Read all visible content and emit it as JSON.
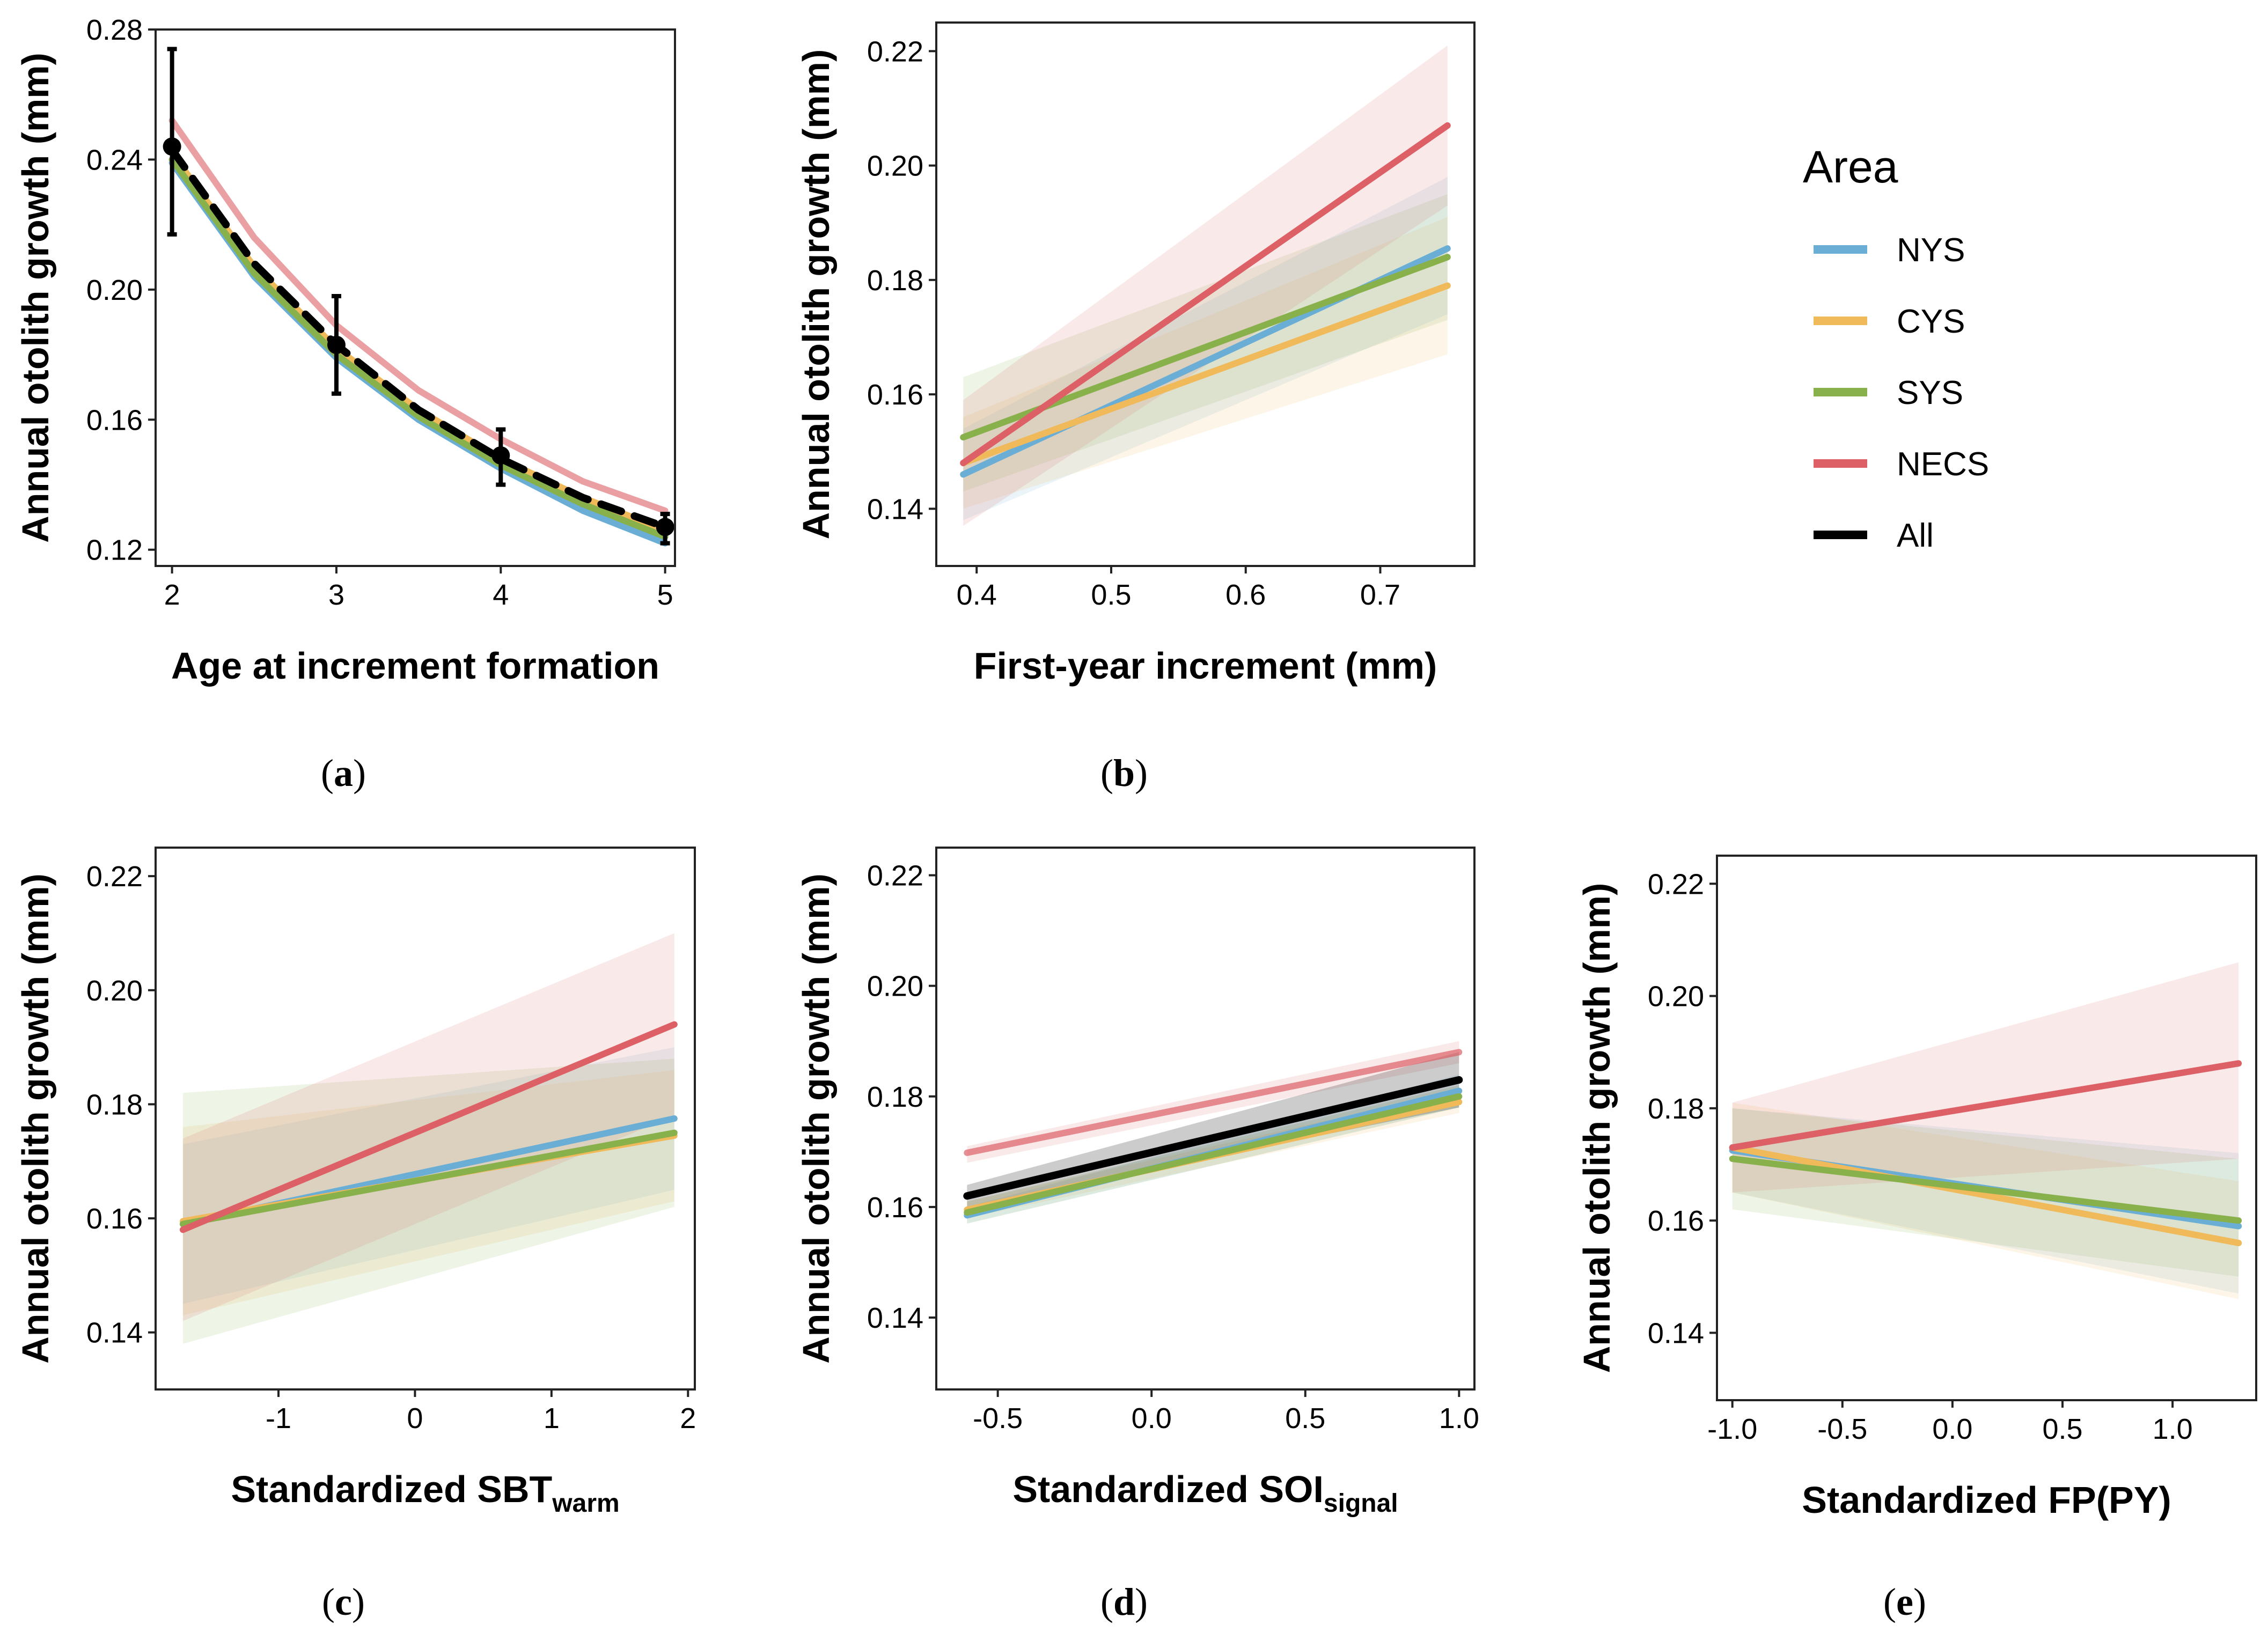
{
  "colors": {
    "NYS": "#6aaed6",
    "CYS": "#f0b95a",
    "SYS": "#88b04b",
    "NECS": "#dc6066",
    "All": "#000000"
  },
  "legend": {
    "title": "Area",
    "entries": [
      {
        "key": "NYS",
        "label": "NYS"
      },
      {
        "key": "CYS",
        "label": "CYS"
      },
      {
        "key": "SYS",
        "label": "SYS"
      },
      {
        "key": "NECS",
        "label": "NECS"
      },
      {
        "key": "All",
        "label": "All"
      }
    ]
  },
  "chart_data": [
    {
      "id": "a",
      "caption": "(a)",
      "type": "line",
      "xlabel": "Age at increment formation",
      "ylabel": "Annual otolith growth (mm)",
      "xlim": [
        1.9,
        5.06
      ],
      "ylim": [
        0.115,
        0.28
      ],
      "xticks": [
        2,
        3,
        4,
        5
      ],
      "xtick_labels": [
        "2",
        "3",
        "4",
        "5"
      ],
      "yticks": [
        0.12,
        0.16,
        0.2,
        0.24,
        0.28
      ],
      "ytick_labels": [
        "0.12",
        "0.16",
        "0.20",
        "0.24",
        "0.28"
      ],
      "series": [
        {
          "name": "NYS",
          "x": [
            2,
            2.5,
            3,
            3.5,
            4,
            4.5,
            5
          ],
          "y": [
            0.239,
            0.204,
            0.179,
            0.16,
            0.145,
            0.132,
            0.122
          ]
        },
        {
          "name": "CYS",
          "x": [
            2,
            2.5,
            3,
            3.5,
            4,
            4.5,
            5
          ],
          "y": [
            0.242,
            0.207,
            0.182,
            0.163,
            0.148,
            0.136,
            0.126
          ]
        },
        {
          "name": "SYS",
          "x": [
            2,
            2.5,
            3,
            3.5,
            4,
            4.5,
            5
          ],
          "y": [
            0.24,
            0.205,
            0.18,
            0.161,
            0.146,
            0.134,
            0.124
          ]
        },
        {
          "name": "NECS",
          "x": [
            2,
            2.5,
            3,
            3.5,
            4,
            4.5,
            5
          ],
          "y": [
            0.252,
            0.216,
            0.189,
            0.169,
            0.154,
            0.141,
            0.132
          ]
        },
        {
          "name": "All",
          "dashed": true,
          "x": [
            2,
            2.5,
            3,
            3.5,
            4,
            4.5,
            5
          ],
          "y": [
            0.243,
            0.208,
            0.183,
            0.163,
            0.148,
            0.136,
            0.127
          ]
        }
      ],
      "points": {
        "x": [
          2,
          3,
          4,
          5
        ],
        "y": [
          0.244,
          0.183,
          0.149,
          0.127
        ],
        "lower": [
          0.217,
          0.168,
          0.14,
          0.122
        ],
        "upper": [
          0.274,
          0.198,
          0.157,
          0.131
        ]
      }
    },
    {
      "id": "b",
      "caption": "(b)",
      "type": "line",
      "xlabel": "First-year increment (mm)",
      "ylabel": "Annual otolith growth (mm)",
      "xlim": [
        0.37,
        0.77
      ],
      "ylim": [
        0.13,
        0.225
      ],
      "xticks": [
        0.4,
        0.5,
        0.6,
        0.7
      ],
      "xtick_labels": [
        "0.4",
        "0.5",
        "0.6",
        "0.7"
      ],
      "yticks": [
        0.14,
        0.16,
        0.18,
        0.2,
        0.22
      ],
      "ytick_labels": [
        "0.14",
        "0.16",
        "0.18",
        "0.20",
        "0.22"
      ],
      "series": [
        {
          "name": "NYS",
          "x": [
            0.39,
            0.75
          ],
          "y": [
            0.146,
            0.1855
          ],
          "lower": [
            0.138,
            0.174
          ],
          "upper": [
            0.154,
            0.198
          ]
        },
        {
          "name": "CYS",
          "x": [
            0.39,
            0.75
          ],
          "y": [
            0.148,
            0.179
          ],
          "lower": [
            0.14,
            0.167
          ],
          "upper": [
            0.156,
            0.191
          ]
        },
        {
          "name": "SYS",
          "x": [
            0.39,
            0.75
          ],
          "y": [
            0.1525,
            0.184
          ],
          "lower": [
            0.143,
            0.173
          ],
          "upper": [
            0.163,
            0.195
          ]
        },
        {
          "name": "NECS",
          "x": [
            0.39,
            0.75
          ],
          "y": [
            0.148,
            0.207
          ],
          "lower": [
            0.137,
            0.193
          ],
          "upper": [
            0.159,
            0.221
          ]
        }
      ]
    },
    {
      "id": "c",
      "caption": "(c)",
      "type": "line",
      "xlabel": "Standardized SBT",
      "xlabel_sub": "warm",
      "ylabel": "Annual otolith growth (mm)",
      "xlim": [
        -1.9,
        2.05
      ],
      "ylim": [
        0.13,
        0.225
      ],
      "xticks": [
        -1,
        0,
        1,
        2
      ],
      "xtick_labels": [
        "-1",
        "0",
        "1",
        "2"
      ],
      "yticks": [
        0.14,
        0.16,
        0.18,
        0.2,
        0.22
      ],
      "ytick_labels": [
        "0.14",
        "0.16",
        "0.18",
        "0.20",
        "0.22"
      ],
      "series": [
        {
          "name": "NYS",
          "x": [
            -1.7,
            1.9
          ],
          "y": [
            0.159,
            0.1775
          ],
          "lower": [
            0.145,
            0.165
          ],
          "upper": [
            0.173,
            0.19
          ]
        },
        {
          "name": "CYS",
          "x": [
            -1.7,
            1.9
          ],
          "y": [
            0.1595,
            0.1745
          ],
          "lower": [
            0.143,
            0.163
          ],
          "upper": [
            0.176,
            0.186
          ]
        },
        {
          "name": "SYS",
          "x": [
            -1.7,
            1.9
          ],
          "y": [
            0.159,
            0.175
          ],
          "lower": [
            0.138,
            0.162
          ],
          "upper": [
            0.182,
            0.188
          ]
        },
        {
          "name": "NECS",
          "x": [
            -1.7,
            1.9
          ],
          "y": [
            0.158,
            0.194
          ],
          "lower": [
            0.142,
            0.178
          ],
          "upper": [
            0.174,
            0.21
          ]
        }
      ]
    },
    {
      "id": "d",
      "caption": "(d)",
      "type": "line",
      "xlabel": "Standardized SOI",
      "xlabel_sub": "signal",
      "ylabel": "Annual otolith growth (mm)",
      "xlim": [
        -0.7,
        1.05
      ],
      "ylim": [
        0.127,
        0.225
      ],
      "xticks": [
        -0.5,
        0.0,
        0.5,
        1.0
      ],
      "xtick_labels": [
        "-0.5",
        "0.0",
        "0.5",
        "1.0"
      ],
      "yticks": [
        0.14,
        0.16,
        0.18,
        0.2,
        0.22
      ],
      "ytick_labels": [
        "0.14",
        "0.16",
        "0.18",
        "0.20",
        "0.22"
      ],
      "series": [
        {
          "name": "NYS",
          "x": [
            -0.6,
            1.0
          ],
          "y": [
            0.1585,
            0.181
          ],
          "lower": [
            0.157,
            0.178
          ],
          "upper": [
            0.16,
            0.184
          ]
        },
        {
          "name": "CYS",
          "x": [
            -0.6,
            1.0
          ],
          "y": [
            0.1595,
            0.179
          ],
          "lower": [
            0.158,
            0.177
          ],
          "upper": [
            0.161,
            0.181
          ]
        },
        {
          "name": "SYS",
          "x": [
            -0.6,
            1.0
          ],
          "y": [
            0.159,
            0.18
          ],
          "lower": [
            0.157,
            0.178
          ],
          "upper": [
            0.161,
            0.182
          ]
        },
        {
          "name": "NECS",
          "x": [
            -0.6,
            1.0
          ],
          "y": [
            0.1698,
            0.188
          ],
          "lower": [
            0.168,
            0.186
          ],
          "upper": [
            0.171,
            0.19
          ]
        },
        {
          "name": "All",
          "x": [
            -0.6,
            1.0
          ],
          "y": [
            0.162,
            0.183
          ],
          "lower": [
            0.16,
            0.178
          ],
          "upper": [
            0.164,
            0.188
          ]
        }
      ]
    },
    {
      "id": "e",
      "caption": "(e)",
      "type": "line",
      "xlabel": "Standardized FP(PY)",
      "ylabel": "Annual otolith growth (mm)",
      "xlim": [
        -1.07,
        1.38
      ],
      "ylim": [
        0.128,
        0.225
      ],
      "xticks": [
        -1.0,
        -0.5,
        0.0,
        0.5,
        1.0
      ],
      "xtick_labels": [
        "-1.0",
        "-0.5",
        "0.0",
        "0.5",
        "1.0"
      ],
      "yticks": [
        0.14,
        0.16,
        0.18,
        0.2,
        0.22
      ],
      "ytick_labels": [
        "0.14",
        "0.16",
        "0.18",
        "0.20",
        "0.22"
      ],
      "series": [
        {
          "name": "NYS",
          "x": [
            -1.0,
            1.3
          ],
          "y": [
            0.1725,
            0.159
          ],
          "lower": [
            0.165,
            0.147
          ],
          "upper": [
            0.18,
            0.172
          ]
        },
        {
          "name": "CYS",
          "x": [
            -1.0,
            1.3
          ],
          "y": [
            0.173,
            0.156
          ],
          "lower": [
            0.165,
            0.146
          ],
          "upper": [
            0.181,
            0.167
          ]
        },
        {
          "name": "SYS",
          "x": [
            -1.0,
            1.3
          ],
          "y": [
            0.171,
            0.16
          ],
          "lower": [
            0.162,
            0.15
          ],
          "upper": [
            0.18,
            0.171
          ]
        },
        {
          "name": "NECS",
          "x": [
            -1.0,
            1.3
          ],
          "y": [
            0.173,
            0.188
          ],
          "lower": [
            0.165,
            0.171
          ],
          "upper": [
            0.181,
            0.206
          ]
        }
      ]
    }
  ]
}
